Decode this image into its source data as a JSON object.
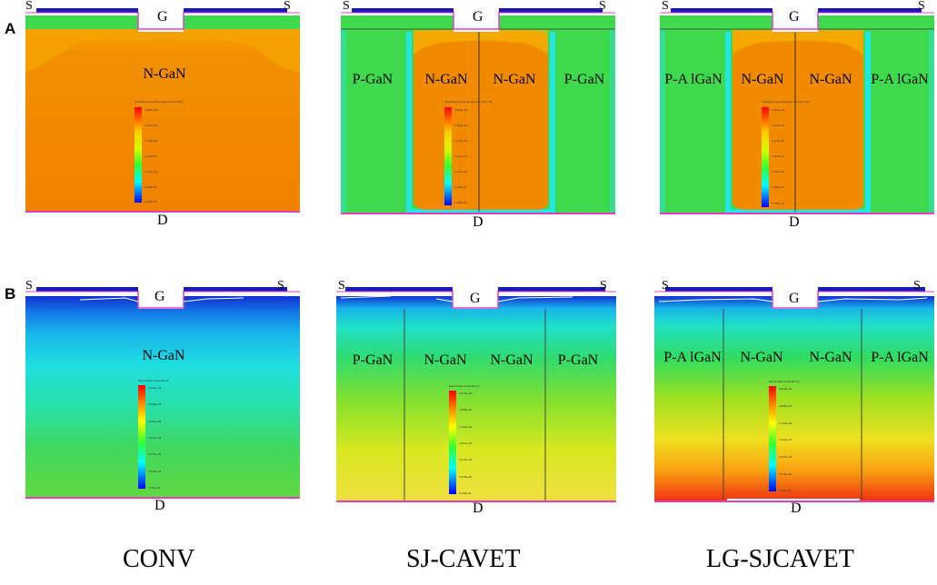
{
  "row_labels": {
    "a": "A",
    "b": "B"
  },
  "terminal_labels": {
    "source": "S",
    "gate": "G",
    "drain": "D"
  },
  "columns": [
    {
      "caption": "CONV",
      "regions_a": [
        "N-GaN"
      ],
      "regions_b": [
        "N-GaN"
      ]
    },
    {
      "caption": "SJ-CAVET",
      "regions_a": [
        "P-GaN",
        "N-GaN",
        "N-GaN",
        "P-GaN"
      ],
      "regions_b": [
        "P-GaN",
        "N-GaN",
        "N-GaN",
        "P-GaN"
      ]
    },
    {
      "caption": "LG-SJCAVET",
      "regions_a": [
        "P-A lGaN",
        "N-GaN",
        "N-GaN",
        "P-A lGaN"
      ],
      "regions_b": [
        "P-A lGaN",
        "N-GaN",
        "N-GaN",
        "P-A lGaN"
      ]
    }
  ],
  "colorbar_a": {
    "title": "Abs(Total Current Density 1/2 (A/cm^2))",
    "ticks": [
      "1.623e+04",
      "1.464e+02",
      "1.179e+00",
      "1.264e-13",
      "1.647e-18",
      "1.009e-24",
      "1.000e-30"
    ]
  },
  "colorbar_b": {
    "title": "Electrostatic Potential (V)",
    "ticks": [
      "3.229e+03",
      "2.688e+03",
      "2.150e+03",
      "1.613e+03",
      "1.075e+03",
      "5.378e+02",
      "3.732e-01"
    ]
  },
  "colors": {
    "orange": "#f28a00",
    "green": "#3fd94d",
    "cyan": "#1ee3e0",
    "metal_blue": "#1a1ab8",
    "magenta": "#e040c0"
  }
}
